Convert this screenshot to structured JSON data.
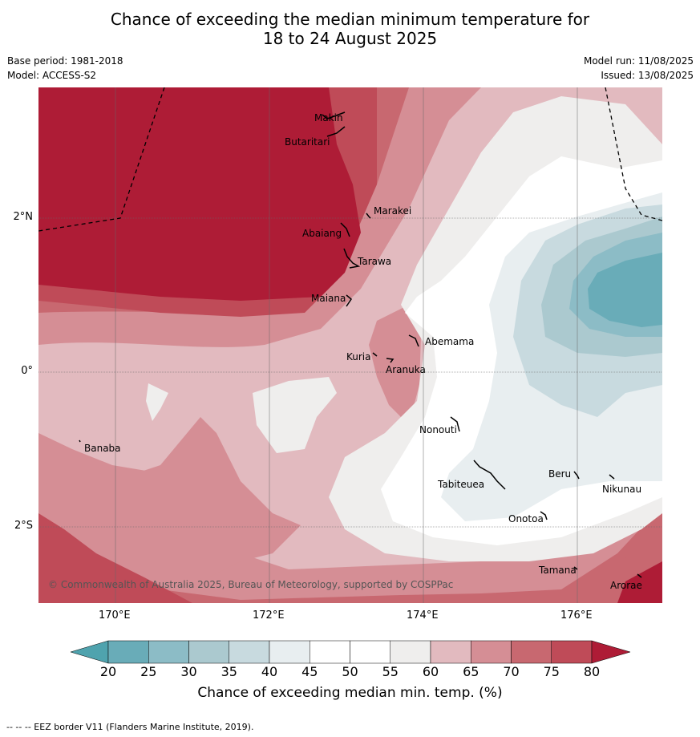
{
  "title_line1": "Chance of exceeding the median minimum temperature for",
  "title_line2": "18 to 24 August 2025",
  "base_period": "Base period: 1981-2018",
  "model": "Model: ACCESS-S2",
  "model_run": "Model run: 11/08/2025",
  "issued": "Issued: 13/08/2025",
  "copyright": "© Commonwealth of Australia 2025, Bureau of Meteorology, supported by COSPPac",
  "lon_ticks": [
    "170°E",
    "172°E",
    "174°E",
    "176°E"
  ],
  "lat_ticks": [
    "2°N",
    "0°",
    "2°S"
  ],
  "colorbar": {
    "title": "Chance of exceeding median min. temp. (%)",
    "ticks": [
      "20",
      "25",
      "30",
      "35",
      "40",
      "45",
      "50",
      "55",
      "60",
      "65",
      "70",
      "75",
      "80"
    ],
    "colors": [
      "#69acb8",
      "#8cbcc6",
      "#abc9cf",
      "#c8dadf",
      "#e8eef0",
      "#ffffff",
      "#ffffff",
      "#efeeed",
      "#e2babf",
      "#d58e95",
      "#c86870",
      "#bf4b58"
    ],
    "under_color": "#4fa3ae",
    "over_color": "#ae1c36"
  },
  "islands": [
    "Makin",
    "Butaritari",
    "Marakei",
    "Abaiang",
    "Tarawa",
    "Maiana",
    "Abemama",
    "Kuria",
    "Aranuka",
    "Banaba",
    "Nonouti",
    "Beru",
    "Tabiteuea",
    "Nikunau",
    "Onotoa",
    "Tamana",
    "Arorae"
  ],
  "footer": "--  --  -- EEZ border V11 (Flanders Marine Institute, 2019)."
}
